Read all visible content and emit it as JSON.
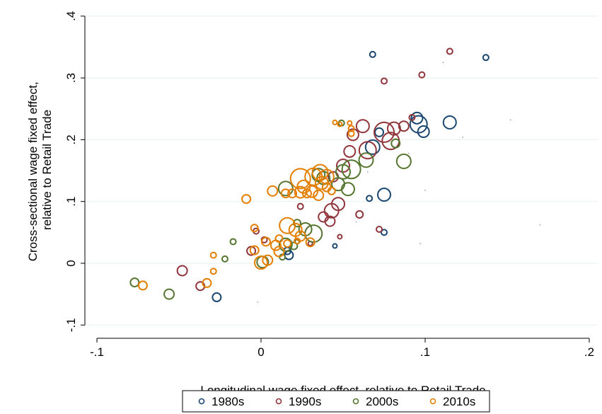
{
  "chart_data": {
    "type": "scatter",
    "title": "",
    "xlabel": "Longitudinal wage fixed effect, relative to Retail Trade",
    "ylabel_lines": [
      "Cross-sectional wage fixed effect,",
      "relative to Retail Trade"
    ],
    "xlim": [
      -0.1,
      0.2
    ],
    "ylim": [
      -0.1,
      0.4
    ],
    "x_ticks": [
      -0.1,
      0,
      0.1,
      0.2
    ],
    "x_tick_labels": [
      "-.1",
      "0",
      ".1",
      ".2"
    ],
    "y_ticks": [
      -0.1,
      0,
      0.1,
      0.2,
      0.3,
      0.4
    ],
    "y_tick_labels": [
      "-.1",
      "0",
      ".1",
      ".2",
      ".3",
      ".4"
    ],
    "grid": true,
    "legend_position": "bottom",
    "marker": "hollow circle, size proportional to weight",
    "series": [
      {
        "name": "1980s",
        "color": "#1a476f",
        "points": [
          [
            0.068,
            0.338,
            4
          ],
          [
            0.137,
            0.333,
            4
          ],
          [
            0.096,
            0.225,
            12
          ],
          [
            0.095,
            0.235,
            8
          ],
          [
            0.099,
            0.213,
            8
          ],
          [
            0.115,
            0.228,
            9
          ],
          [
            0.072,
            0.212,
            6
          ],
          [
            0.068,
            0.188,
            10
          ],
          [
            0.075,
            0.111,
            9
          ],
          [
            0.066,
            0.105,
            4
          ],
          [
            0.075,
            0.05,
            4
          ],
          [
            0.045,
            0.028,
            3
          ],
          [
            0.017,
            0.013,
            6
          ],
          [
            0.016,
            0.02,
            5
          ],
          [
            -0.027,
            -0.055,
            6
          ]
        ]
      },
      {
        "name": "1990s",
        "color": "#90353b",
        "points": [
          [
            0.115,
            0.343,
            4
          ],
          [
            0.098,
            0.305,
            4
          ],
          [
            0.075,
            0.295,
            4
          ],
          [
            0.081,
            0.218,
            9
          ],
          [
            0.079,
            0.198,
            12
          ],
          [
            0.075,
            0.212,
            14
          ],
          [
            0.062,
            0.222,
            9
          ],
          [
            0.056,
            0.208,
            8
          ],
          [
            0.054,
            0.181,
            8
          ],
          [
            0.065,
            0.183,
            12
          ],
          [
            0.087,
            0.222,
            7
          ],
          [
            0.092,
            0.236,
            4
          ],
          [
            0.05,
            0.158,
            9
          ],
          [
            0.044,
            0.14,
            7
          ],
          [
            0.047,
            0.096,
            9
          ],
          [
            0.043,
            0.085,
            10
          ],
          [
            0.038,
            0.075,
            7
          ],
          [
            0.042,
            0.068,
            7
          ],
          [
            0.06,
            0.079,
            5
          ],
          [
            0.072,
            0.055,
            4
          ],
          [
            0.048,
            0.043,
            3
          ],
          [
            0.024,
            0.092,
            4
          ],
          [
            -0.003,
            0.052,
            4
          ],
          [
            0.002,
            0.038,
            4
          ],
          [
            -0.006,
            0.02,
            6
          ],
          [
            -0.048,
            -0.012,
            7
          ],
          [
            -0.037,
            -0.037,
            6
          ],
          [
            0.03,
            0.032,
            3
          ]
        ]
      },
      {
        "name": "2000s",
        "color": "#55752f",
        "points": [
          [
            0.049,
            0.227,
            4
          ],
          [
            0.087,
            0.165,
            10
          ],
          [
            0.082,
            0.194,
            6
          ],
          [
            0.064,
            0.167,
            10
          ],
          [
            0.055,
            0.152,
            13
          ],
          [
            0.05,
            0.148,
            10
          ],
          [
            0.035,
            0.143,
            9
          ],
          [
            0.038,
            0.138,
            9
          ],
          [
            0.047,
            0.128,
            9
          ],
          [
            0.053,
            0.12,
            9
          ],
          [
            0.015,
            0.121,
            10
          ],
          [
            0.032,
            0.048,
            12
          ],
          [
            0.027,
            0.055,
            9
          ],
          [
            0.022,
            0.065,
            5
          ],
          [
            0.015,
            0.03,
            9
          ],
          [
            0.02,
            0.028,
            5
          ],
          [
            0.022,
            0.035,
            3
          ],
          [
            -0.017,
            0.035,
            4
          ],
          [
            -0.022,
            0.007,
            4
          ],
          [
            0.001,
            0.002,
            8
          ],
          [
            0.013,
            0.01,
            4
          ],
          [
            -0.056,
            -0.05,
            7
          ],
          [
            -0.077,
            -0.031,
            6
          ]
        ]
      },
      {
        "name": "2010s",
        "color": "#e37e00",
        "points": [
          [
            0.045,
            0.228,
            3
          ],
          [
            0.048,
            0.225,
            3
          ],
          [
            0.054,
            0.227,
            3
          ],
          [
            0.055,
            0.218,
            4
          ],
          [
            0.055,
            0.21,
            4
          ],
          [
            0.024,
            0.137,
            14
          ],
          [
            0.032,
            0.14,
            12
          ],
          [
            0.036,
            0.147,
            11
          ],
          [
            0.04,
            0.14,
            10
          ],
          [
            0.037,
            0.13,
            9
          ],
          [
            0.026,
            0.124,
            9
          ],
          [
            0.024,
            0.115,
            8
          ],
          [
            0.031,
            0.116,
            8
          ],
          [
            0.035,
            0.11,
            7
          ],
          [
            0.019,
            0.113,
            6
          ],
          [
            0.007,
            0.117,
            7
          ],
          [
            0.015,
            0.113,
            6
          ],
          [
            0.028,
            0.113,
            6
          ],
          [
            0.04,
            0.123,
            6
          ],
          [
            0.043,
            0.117,
            5
          ],
          [
            -0.009,
            0.104,
            6
          ],
          [
            0.016,
            0.061,
            11
          ],
          [
            0.021,
            0.054,
            9
          ],
          [
            0.024,
            0.044,
            7
          ],
          [
            0.03,
            0.034,
            6
          ],
          [
            0.022,
            0.036,
            4
          ],
          [
            -0.004,
            0.057,
            5
          ],
          [
            0.003,
            0.035,
            6
          ],
          [
            0.009,
            0.029,
            7
          ],
          [
            0.011,
            0.019,
            7
          ],
          [
            0.011,
            0.04,
            5
          ],
          [
            0.016,
            0.032,
            5
          ],
          [
            -0.004,
            0.021,
            6
          ],
          [
            0.0,
            0.001,
            9
          ],
          [
            0.004,
            0.005,
            7
          ],
          [
            -0.029,
            0.013,
            4
          ],
          [
            -0.029,
            -0.013,
            4
          ],
          [
            -0.033,
            -0.032,
            6
          ],
          [
            -0.072,
            -0.036,
            6
          ]
        ]
      }
    ],
    "tiny_points": [
      [
        0.17,
        0.062
      ],
      [
        0.152,
        0.232
      ],
      [
        0.123,
        0.204
      ],
      [
        0.1,
        0.118
      ],
      [
        0.097,
        0.032
      ],
      [
        0.09,
        0.178
      ],
      [
        0.111,
        0.325
      ],
      [
        -0.002,
        -0.063
      ],
      [
        0.065,
        0.148
      ],
      [
        0.058,
        0.067
      ]
    ]
  }
}
